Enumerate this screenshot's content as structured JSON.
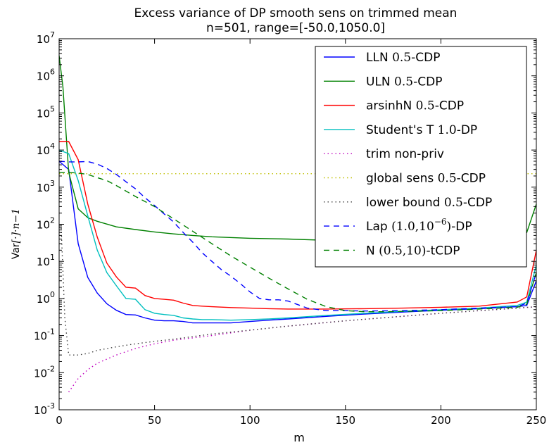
{
  "chart_data": {
    "type": "line",
    "title": "Excess variance of DP smooth sens on trimmed mean",
    "subtitle": "n=501, range=[-50.0,1050.0]",
    "xlabel": "m",
    "ylabel": {
      "prefix": "Var",
      "suffix": "[·]·n−1"
    },
    "xlim": [
      0,
      250
    ],
    "ylim": [
      0.001,
      10000000
    ],
    "yscale": "log",
    "grid": false,
    "legend_position": "top-right",
    "x_ticks": [
      {
        "value": 0,
        "label": "0"
      },
      {
        "value": 50,
        "label": "50"
      },
      {
        "value": 100,
        "label": "100"
      },
      {
        "value": 150,
        "label": "150"
      },
      {
        "value": 200,
        "label": "200"
      },
      {
        "value": 250,
        "label": "250"
      }
    ],
    "y_ticks": [
      {
        "value": 0.001,
        "base": "10",
        "exp": "-3"
      },
      {
        "value": 0.01,
        "base": "10",
        "exp": "-2"
      },
      {
        "value": 0.1,
        "base": "10",
        "exp": "-1"
      },
      {
        "value": 1,
        "base": "10",
        "exp": "0"
      },
      {
        "value": 10,
        "base": "10",
        "exp": "1"
      },
      {
        "value": 100,
        "base": "10",
        "exp": "2"
      },
      {
        "value": 1000,
        "base": "10",
        "exp": "3"
      },
      {
        "value": 10000,
        "base": "10",
        "exp": "4"
      },
      {
        "value": 100000,
        "base": "10",
        "exp": "5"
      },
      {
        "value": 1000000,
        "base": "10",
        "exp": "6"
      },
      {
        "value": 10000000,
        "base": "10",
        "exp": "7"
      }
    ],
    "series": [
      {
        "name": "LLN",
        "name_suffix": "0.5-CDP",
        "color": "#0000ff",
        "dash": "solid",
        "x": [
          0,
          5,
          10,
          15,
          20,
          25,
          30,
          35,
          40,
          45,
          50,
          55,
          60,
          65,
          70,
          75,
          80,
          90,
          100,
          110,
          120,
          140,
          160,
          180,
          200,
          220,
          240,
          245,
          250
        ],
        "y": [
          5000,
          3000,
          30,
          3.7,
          1.4,
          0.72,
          0.48,
          0.37,
          0.36,
          0.3,
          0.26,
          0.25,
          0.25,
          0.24,
          0.22,
          0.22,
          0.22,
          0.22,
          0.24,
          0.26,
          0.28,
          0.33,
          0.38,
          0.43,
          0.48,
          0.53,
          0.6,
          0.65,
          3
        ]
      },
      {
        "name": "ULN",
        "name_suffix": "0.5-CDP",
        "color": "#008000",
        "dash": "solid",
        "x": [
          0,
          2,
          5,
          10,
          15,
          20,
          30,
          40,
          50,
          60,
          70,
          80,
          100,
          120,
          140,
          160,
          180,
          200,
          220,
          240,
          245,
          250
        ],
        "y": [
          3500000,
          500000,
          2500,
          260,
          150,
          120,
          85,
          72,
          62,
          55,
          50,
          46,
          42,
          40,
          37,
          36,
          35,
          35,
          34,
          34,
          60,
          350
        ]
      },
      {
        "name": "arsinhN",
        "name_suffix": "0.5-CDP",
        "color": "#ff0000",
        "dash": "solid",
        "x": [
          0,
          5,
          10,
          15,
          20,
          25,
          30,
          35,
          40,
          45,
          50,
          55,
          60,
          65,
          70,
          75,
          80,
          90,
          100,
          110,
          120,
          140,
          160,
          180,
          200,
          220,
          240,
          245,
          250
        ],
        "y": [
          17000,
          17000,
          5500,
          350,
          45,
          9,
          3.8,
          2.0,
          1.9,
          1.2,
          1.0,
          0.95,
          0.9,
          0.75,
          0.65,
          0.62,
          0.6,
          0.57,
          0.55,
          0.53,
          0.52,
          0.52,
          0.53,
          0.55,
          0.58,
          0.62,
          0.8,
          1.1,
          20
        ]
      },
      {
        "name": "Student's T",
        "name_suffix": "1.0-DP",
        "color": "#00bfbf",
        "dash": "solid",
        "x": [
          0,
          5,
          10,
          15,
          20,
          25,
          30,
          35,
          40,
          45,
          50,
          55,
          60,
          65,
          70,
          75,
          80,
          90,
          100,
          110,
          120,
          140,
          160,
          180,
          200,
          220,
          240,
          245,
          250
        ],
        "y": [
          10000,
          8000,
          1500,
          170,
          20,
          5,
          2.2,
          1.0,
          0.95,
          0.5,
          0.4,
          0.37,
          0.35,
          0.3,
          0.28,
          0.27,
          0.27,
          0.26,
          0.27,
          0.28,
          0.3,
          0.35,
          0.4,
          0.45,
          0.5,
          0.55,
          0.65,
          0.8,
          8
        ]
      },
      {
        "name": "trim non-priv",
        "name_suffix": "",
        "color": "#bf00bf",
        "dash": "dot",
        "x": [
          5,
          10,
          15,
          20,
          30,
          40,
          50,
          60,
          80,
          100,
          120,
          150,
          200,
          240,
          250
        ],
        "y": [
          0.003,
          0.007,
          0.012,
          0.018,
          0.03,
          0.045,
          0.06,
          0.075,
          0.1,
          0.14,
          0.18,
          0.25,
          0.4,
          0.55,
          0.6
        ]
      },
      {
        "name": "global sens",
        "name_suffix": "0.5-CDP",
        "color": "#bfbf00",
        "dash": "dot",
        "x": [
          0,
          250
        ],
        "y": [
          2300,
          2300
        ]
      },
      {
        "name": "lower bound",
        "name_suffix": "0.5-CDP",
        "color": "#404040",
        "dash": "dot",
        "x": [
          1,
          3,
          5,
          10,
          15,
          20,
          30,
          40,
          50,
          60,
          80,
          100,
          120,
          150,
          200,
          240,
          250
        ],
        "y": [
          100,
          0.3,
          0.03,
          0.03,
          0.033,
          0.04,
          0.05,
          0.06,
          0.07,
          0.08,
          0.11,
          0.14,
          0.18,
          0.25,
          0.4,
          0.55,
          0.6
        ]
      },
      {
        "name": "Lap",
        "name_suffix_math": "(1.0,10",
        "name_suffix_exp": "−6",
        "name_suffix_close": ")",
        "name_suffix_tail": "-DP",
        "color": "#0000ff",
        "dash": "dash",
        "x": [
          0,
          5,
          10,
          15,
          20,
          25,
          30,
          35,
          40,
          45,
          50,
          55,
          60,
          65,
          70,
          75,
          80,
          85,
          90,
          95,
          100,
          105,
          110,
          115,
          120,
          130,
          140,
          150,
          160,
          180,
          200,
          220,
          240,
          245,
          250
        ],
        "y": [
          5000,
          4800,
          4800,
          4900,
          4200,
          3200,
          2200,
          1400,
          900,
          520,
          320,
          190,
          115,
          60,
          33,
          17,
          10,
          6,
          4,
          2.5,
          1.5,
          1.0,
          0.92,
          0.92,
          0.85,
          0.55,
          0.47,
          0.47,
          0.46,
          0.47,
          0.5,
          0.55,
          0.6,
          0.75,
          5
        ]
      },
      {
        "name": "N",
        "name_suffix_math": "(0.5,10)",
        "name_suffix_tail": "-tCDP",
        "color": "#008000",
        "dash": "dash",
        "x": [
          0,
          5,
          10,
          15,
          20,
          25,
          30,
          40,
          50,
          60,
          70,
          80,
          90,
          100,
          110,
          120,
          130,
          140,
          150,
          160,
          170,
          180,
          200,
          220,
          240,
          245,
          250
        ],
        "y": [
          2500,
          2500,
          2400,
          2200,
          1800,
          1500,
          1100,
          560,
          300,
          140,
          65,
          30,
          14,
          7,
          3.5,
          1.8,
          0.95,
          0.6,
          0.47,
          0.44,
          0.44,
          0.45,
          0.47,
          0.52,
          0.58,
          0.7,
          5
        ]
      }
    ]
  }
}
